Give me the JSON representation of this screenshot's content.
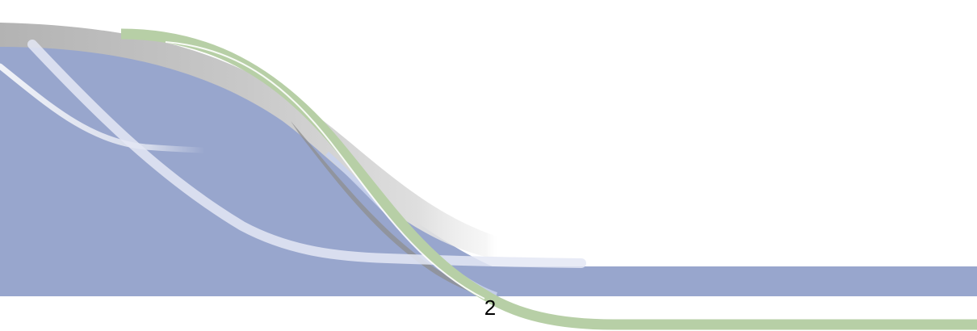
{
  "slide": {
    "page_number": "2"
  },
  "colors": {
    "background": "#ffffff",
    "blue_band": "#98a6cd",
    "gray_swoosh": "#b9b9b9",
    "green_swoosh": "#b7cfa6",
    "highlight": "#ffffff"
  }
}
